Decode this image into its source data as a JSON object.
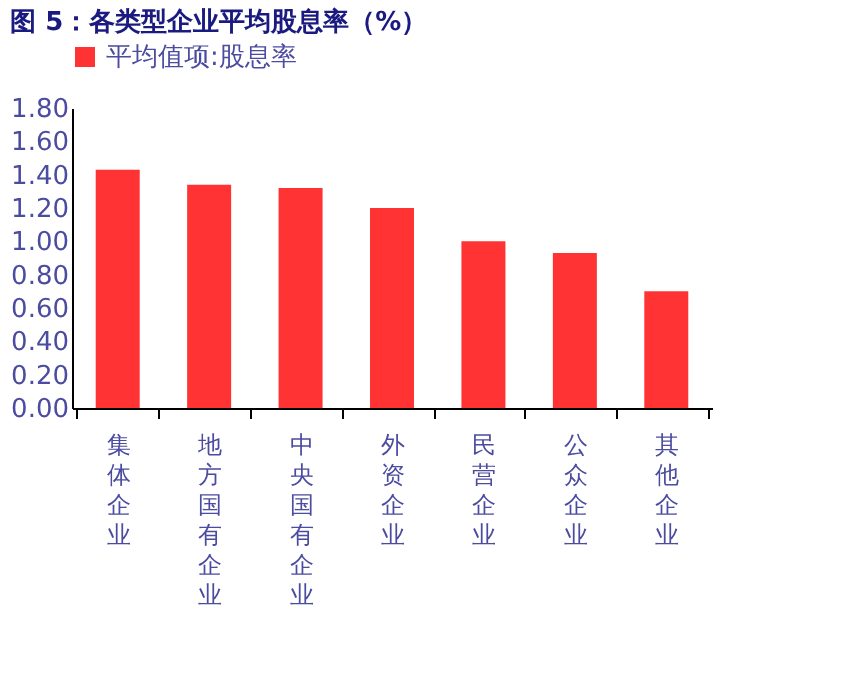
{
  "chart_data": {
    "type": "bar",
    "title": "图 5：各类型企业平均股息率（%）",
    "categories": [
      "集体企业",
      "地方国有企业",
      "中央国有企业",
      "外资企业",
      "民营企业",
      "公众企业",
      "其他企业"
    ],
    "series": [
      {
        "name": "平均值项:股息率",
        "color": "#ff3333",
        "values": [
          1.43,
          1.34,
          1.32,
          1.2,
          1.0,
          0.93,
          0.7
        ]
      }
    ],
    "ylim": [
      0,
      1.8
    ],
    "yticks": [
      {
        "value": 0,
        "label": "0.00"
      },
      {
        "value": 0.2,
        "label": "0.20"
      },
      {
        "value": 0.4,
        "label": "0.40"
      },
      {
        "value": 0.6,
        "label": "0.60"
      },
      {
        "value": 0.8,
        "label": "0.80"
      },
      {
        "value": 1.0,
        "label": "1.00"
      },
      {
        "value": 1.2,
        "label": "1.20"
      },
      {
        "value": 1.4,
        "label": "1.40"
      },
      {
        "value": 1.6,
        "label": "1.60"
      },
      {
        "value": 1.8,
        "label": "1.80"
      }
    ],
    "grid": false,
    "legend": "top"
  }
}
